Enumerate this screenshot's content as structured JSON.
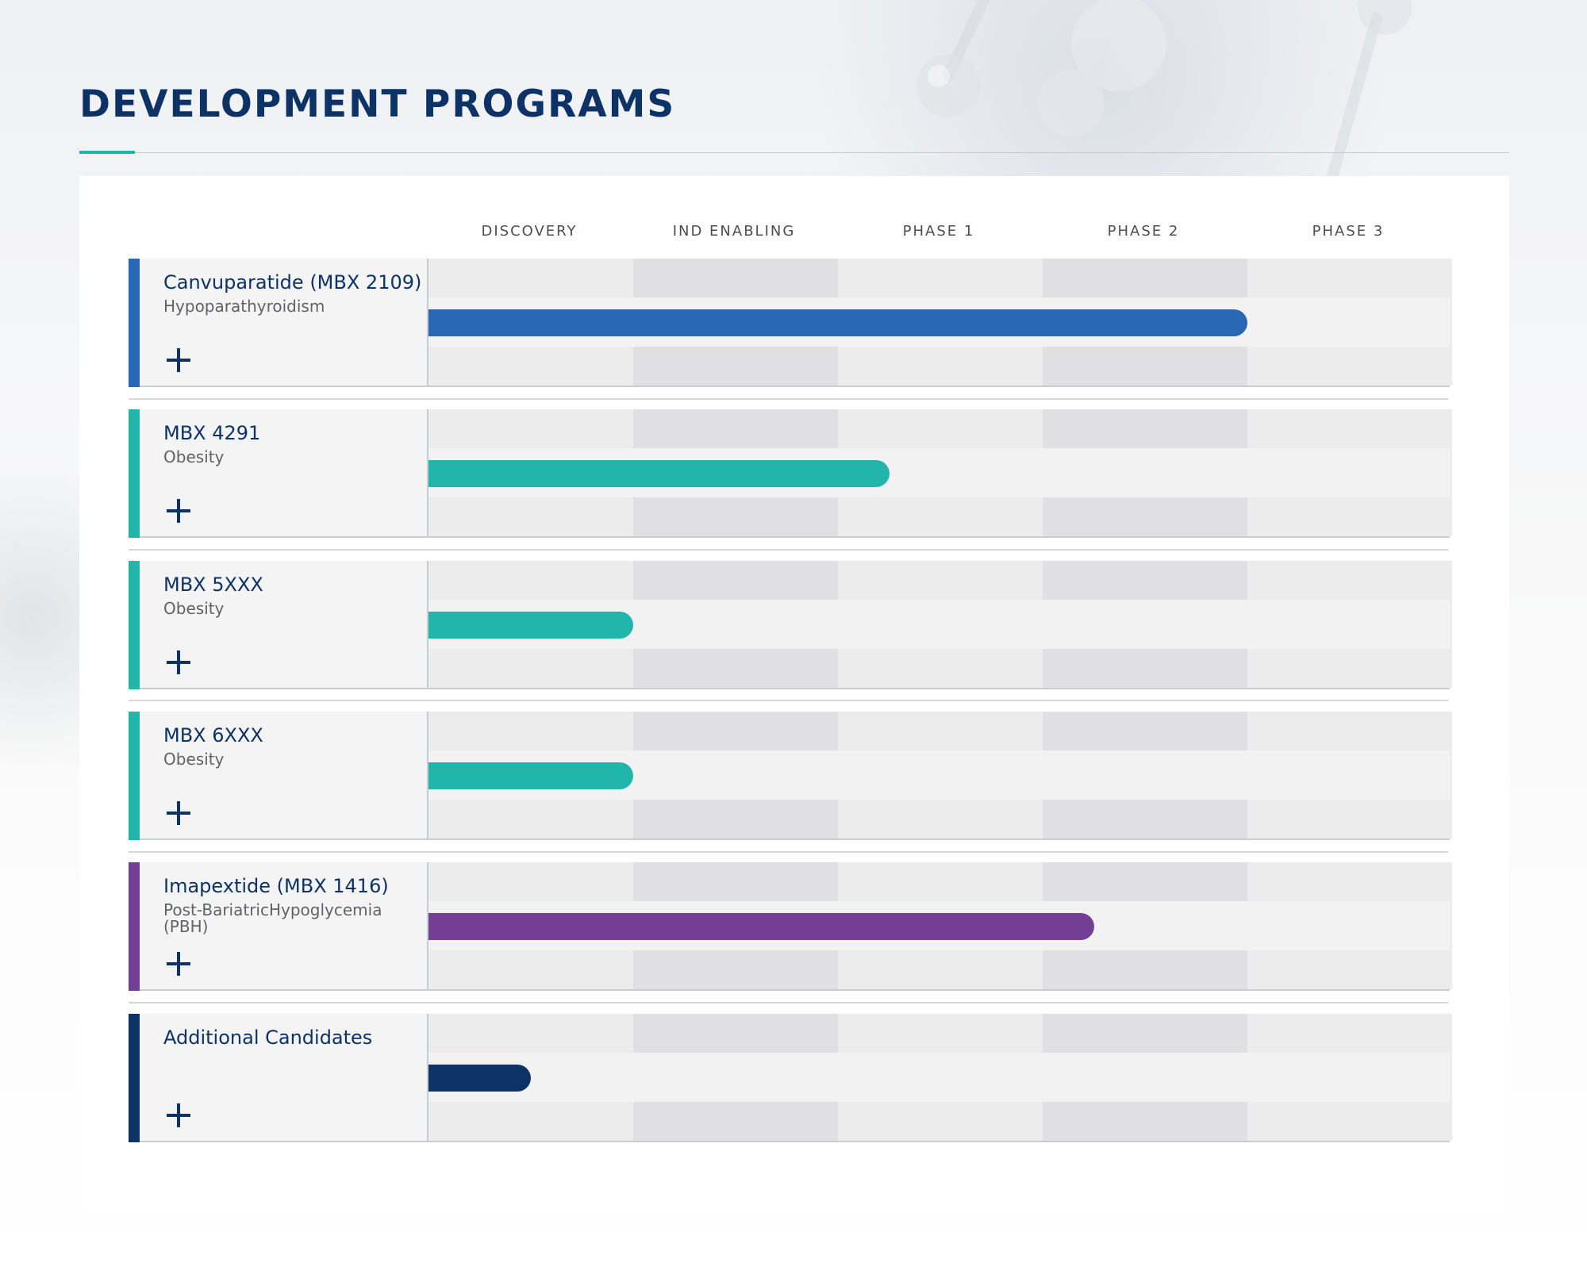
{
  "page": {
    "title": "DEVELOPMENT PROGRAMS"
  },
  "phases": [
    "DISCOVERY",
    "IND ENABLING",
    "PHASE 1",
    "PHASE 2",
    "PHASE 3"
  ],
  "programs": [
    {
      "name": "Canvuparatide (MBX 2109)",
      "indication": "Hypoparathyroidism",
      "color": "#2767b4",
      "progress_phases": 4.0
    },
    {
      "name": "MBX 4291",
      "indication": "Obesity",
      "color": "#22b5aa",
      "progress_phases": 2.25
    },
    {
      "name": "MBX 5XXX",
      "indication": "Obesity",
      "color": "#22b5aa",
      "progress_phases": 1.0
    },
    {
      "name": "MBX 6XXX",
      "indication": "Obesity",
      "color": "#22b5aa",
      "progress_phases": 1.0
    },
    {
      "name": "Imapextide (MBX 1416)",
      "indication": "Post-BariatricHypoglycemia (PBH)",
      "color": "#723f94",
      "progress_phases": 3.25
    },
    {
      "name": "Additional Candidates",
      "indication": "",
      "color": "#0d3266",
      "progress_phases": 0.5
    }
  ],
  "icons": {
    "expand": "plus-icon",
    "decoration": "molecule-icon"
  }
}
